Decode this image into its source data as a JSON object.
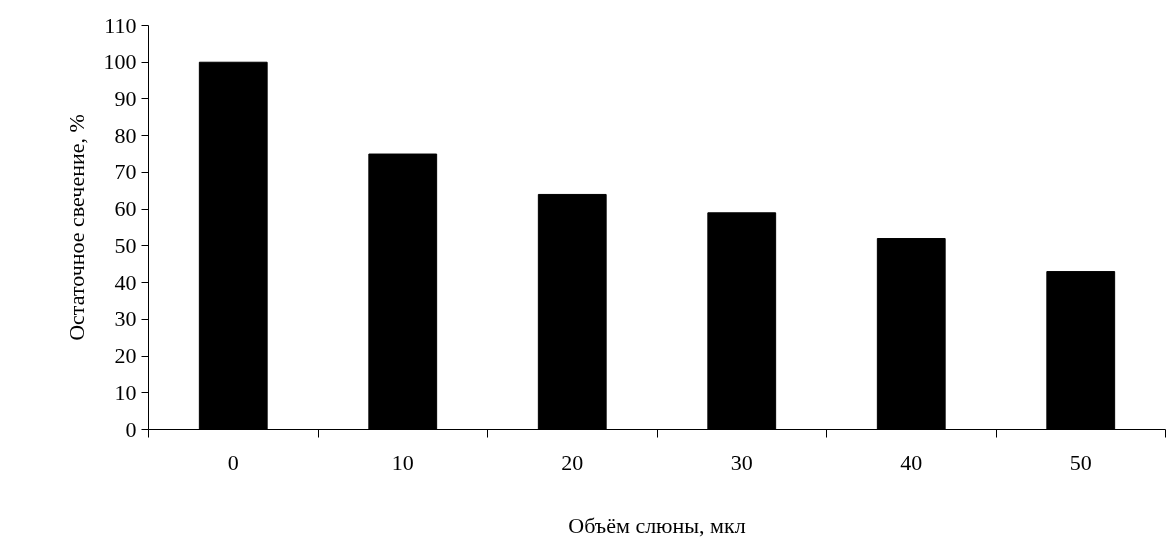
{
  "chart_data": {
    "type": "bar",
    "xlabel": "Объём слюны, мкл",
    "ylabel": "Остаточное свечение, %",
    "categories": [
      "0",
      "10",
      "20",
      "30",
      "40",
      "50"
    ],
    "values": [
      100,
      75,
      64,
      59,
      52,
      43
    ],
    "color": "#000000",
    "ylim": [
      0,
      110
    ],
    "yticks": [
      0,
      10,
      20,
      30,
      40,
      50,
      60,
      70,
      80,
      90,
      100,
      110
    ],
    "grid": false
  }
}
